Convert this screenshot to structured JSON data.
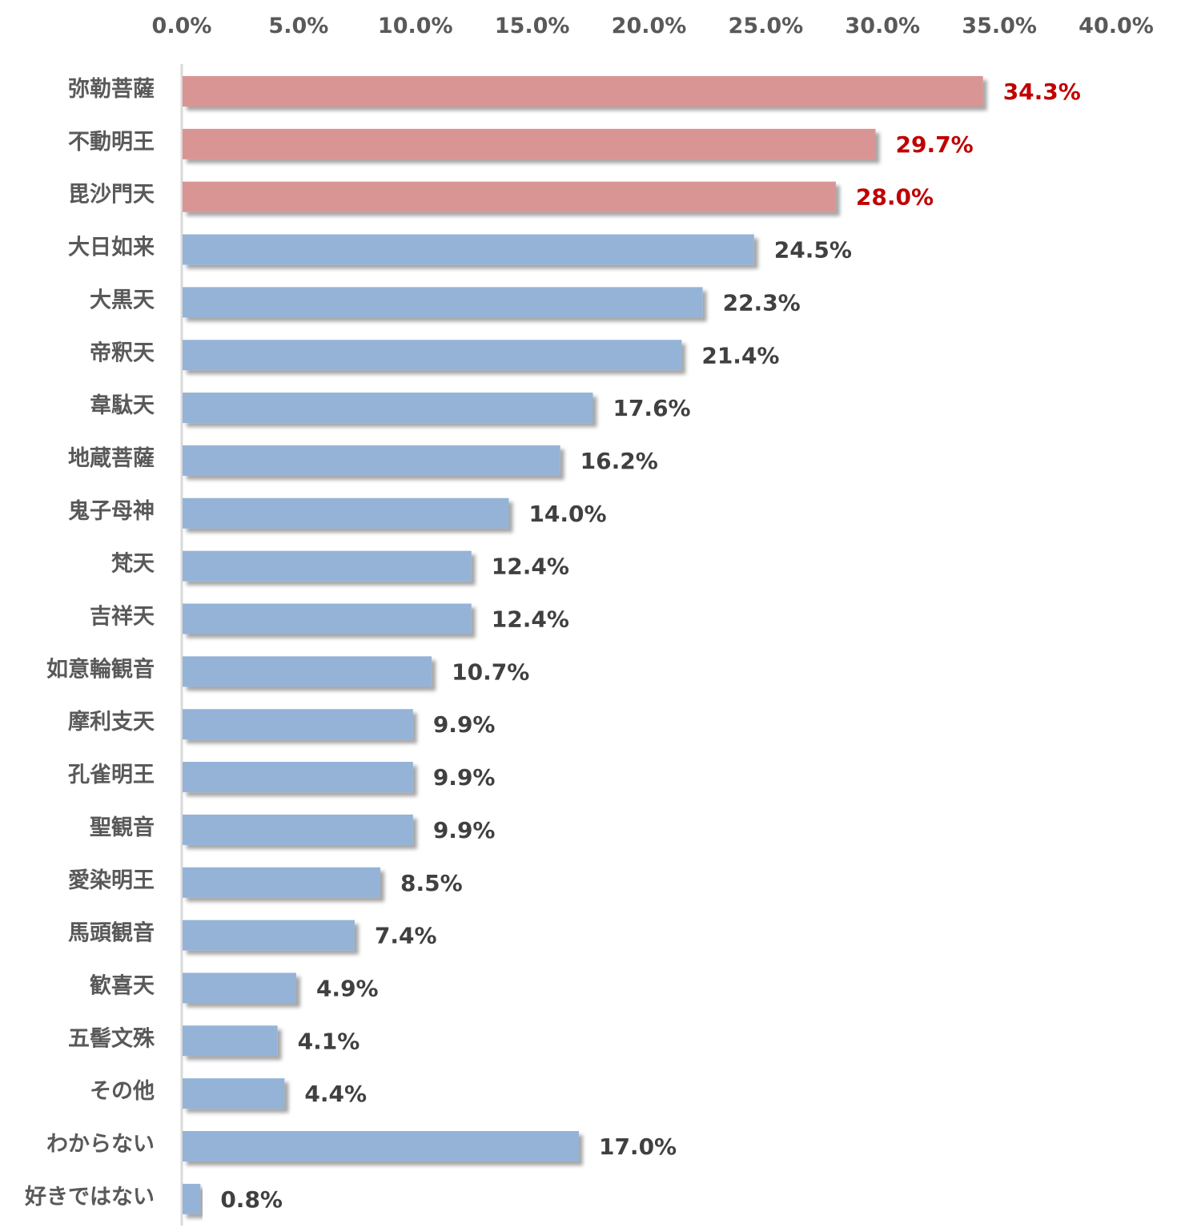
{
  "chart_data": {
    "type": "bar",
    "orientation": "horizontal",
    "title": "",
    "xlabel": "",
    "ylabel": "",
    "xlim": [
      0,
      40
    ],
    "x_ticks": [
      "0.0%",
      "5.0%",
      "10.0%",
      "15.0%",
      "20.0%",
      "25.0%",
      "30.0%",
      "35.0%",
      "40.0%"
    ],
    "x_tick_values": [
      0,
      5,
      10,
      15,
      20,
      25,
      30,
      35,
      40
    ],
    "x_axis_position": "top",
    "grid": false,
    "categories": [
      "弥勒菩薩",
      "不動明王",
      "毘沙門天",
      "大日如来",
      "大黒天",
      "帝釈天",
      "韋駄天",
      "地蔵菩薩",
      "鬼子母神",
      "梵天",
      "吉祥天",
      "如意輪観音",
      "摩利支天",
      "孔雀明王",
      "聖観音",
      "愛染明王",
      "馬頭観音",
      "歓喜天",
      "五髻文殊",
      "その他",
      "わからない",
      "好きではない"
    ],
    "values": [
      34.3,
      29.7,
      28.0,
      24.5,
      22.3,
      21.4,
      17.6,
      16.2,
      14.0,
      12.4,
      12.4,
      10.7,
      9.9,
      9.9,
      9.9,
      8.5,
      7.4,
      4.9,
      4.1,
      4.4,
      17.0,
      0.8
    ],
    "labels": [
      "34.3%",
      "29.7%",
      "28.0%",
      "24.5%",
      "22.3%",
      "21.4%",
      "17.6%",
      "16.2%",
      "14.0%",
      "12.4%",
      "12.4%",
      "10.7%",
      "9.9%",
      "9.9%",
      "9.9%",
      "8.5%",
      "7.4%",
      "4.9%",
      "4.1%",
      "4.4%",
      "17.0%",
      "0.8%"
    ],
    "highlight_count": 3,
    "colors": {
      "highlight_bar": "#d99594",
      "highlight_label": "#c00000",
      "bar": "#95b3d7",
      "label": "#404040",
      "axis": "#d9d9d9"
    }
  }
}
